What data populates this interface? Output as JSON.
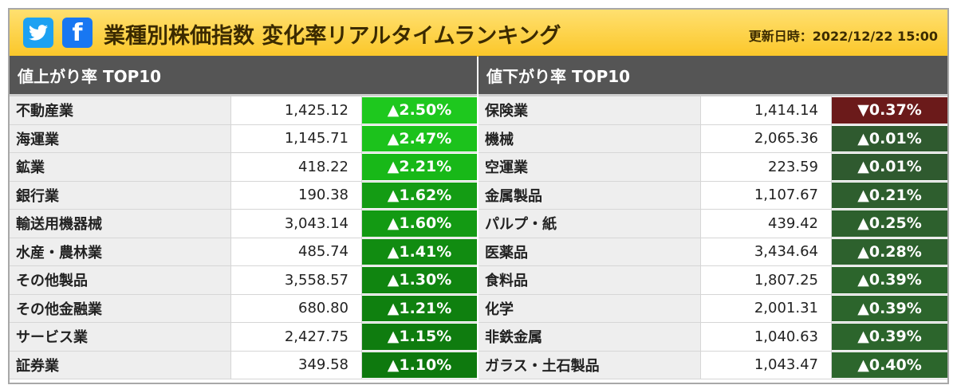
{
  "header": {
    "title": "業種別株価指数 変化率リアルタイムランキング",
    "updated": "更新日時：2022/12/22 15:00",
    "bg_color": "#fbc72a"
  },
  "sns": {
    "twitter_icon": "twitter-bird-icon",
    "facebook_label": "f"
  },
  "gainers": {
    "heading": "値上がり率 TOP10",
    "rows": [
      {
        "name": "不動産業",
        "value": "1,425.12",
        "change": "▲2.50%",
        "color": "#1ec81e"
      },
      {
        "name": "海運業",
        "value": "1,145.71",
        "change": "▲2.47%",
        "color": "#1cc21c"
      },
      {
        "name": "鉱業",
        "value": "418.22",
        "change": "▲2.21%",
        "color": "#18b818"
      },
      {
        "name": "銀行業",
        "value": "190.38",
        "change": "▲1.62%",
        "color": "#149c14"
      },
      {
        "name": "輸送用機器械",
        "value": "3,043.14",
        "change": "▲1.60%",
        "color": "#139a13"
      },
      {
        "name": "水産・農林業",
        "value": "485.74",
        "change": "▲1.41%",
        "color": "#118c11"
      },
      {
        "name": "その他製品",
        "value": "3,558.57",
        "change": "▲1.30%",
        "color": "#108510"
      },
      {
        "name": "その他金融業",
        "value": "680.80",
        "change": "▲1.21%",
        "color": "#0f800f"
      },
      {
        "name": "サービス業",
        "value": "2,427.75",
        "change": "▲1.15%",
        "color": "#0f7c0f"
      },
      {
        "name": "証券業",
        "value": "349.58",
        "change": "▲1.10%",
        "color": "#0e790e"
      }
    ]
  },
  "losers": {
    "heading": "値下がり率 TOP10",
    "rows": [
      {
        "name": "保険業",
        "value": "1,414.14",
        "change": "▼0.37%",
        "color": "#6b1a1a"
      },
      {
        "name": "機械",
        "value": "2,065.36",
        "change": "▲0.01%",
        "color": "#2f5a2f"
      },
      {
        "name": "空運業",
        "value": "223.59",
        "change": "▲0.01%",
        "color": "#2f5a2f"
      },
      {
        "name": "金属製品",
        "value": "1,107.67",
        "change": "▲0.21%",
        "color": "#2e5e2e"
      },
      {
        "name": "パルプ・紙",
        "value": "439.42",
        "change": "▲0.25%",
        "color": "#2d602d"
      },
      {
        "name": "医薬品",
        "value": "3,434.64",
        "change": "▲0.28%",
        "color": "#2d612d"
      },
      {
        "name": "食料品",
        "value": "1,807.25",
        "change": "▲0.39%",
        "color": "#2c652c"
      },
      {
        "name": "化学",
        "value": "2,001.31",
        "change": "▲0.39%",
        "color": "#2c652c"
      },
      {
        "name": "非鉄金属",
        "value": "1,040.63",
        "change": "▲0.39%",
        "color": "#2c652c"
      },
      {
        "name": "ガラス・土石製品",
        "value": "1,043.47",
        "change": "▲0.40%",
        "color": "#2c662c"
      }
    ]
  }
}
